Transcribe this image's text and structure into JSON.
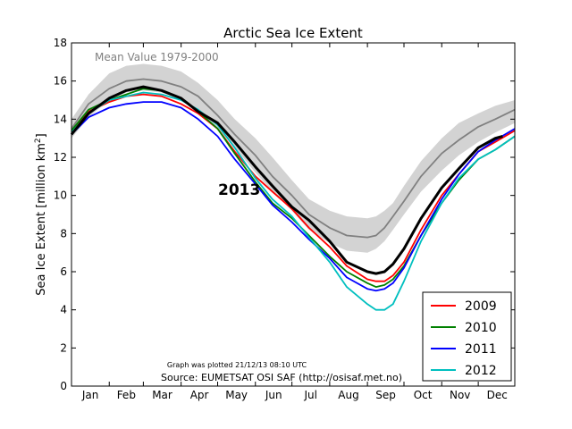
{
  "chart_data": {
    "type": "line",
    "title": "Arctic Sea Ice Extent",
    "ylabel": "Sea Ice Extent [million km",
    "ylabel_sup": "2",
    "ylabel_end": "]",
    "ylim": [
      0,
      18
    ],
    "xlim": [
      1,
      365
    ],
    "yticks": [
      0,
      2,
      4,
      6,
      8,
      10,
      12,
      14,
      16,
      18
    ],
    "month_labels": [
      "Jan",
      "Feb",
      "Mar",
      "Apr",
      "May",
      "Jun",
      "Jul",
      "Aug",
      "Sep",
      "Oct",
      "Nov",
      "Dec"
    ],
    "grid": false,
    "legend_placement": "lower-right",
    "mean_label": "Mean Value 1979-2000",
    "highlight_label": "2013",
    "plot_note": "Graph was plotted 21/12/13 08:10 UTC",
    "source": "Source: EUMETSAT OSI SAF (http://osisaf.met.no)",
    "mean_band": {
      "x": [
        1,
        15,
        32,
        46,
        60,
        75,
        91,
        105,
        121,
        135,
        152,
        166,
        182,
        196,
        213,
        227,
        244,
        251,
        258,
        265,
        274,
        288,
        305,
        319,
        335,
        349,
        365
      ],
      "upper": [
        14.0,
        15.3,
        16.4,
        16.8,
        16.9,
        16.8,
        16.5,
        15.9,
        15.0,
        14.0,
        13.0,
        12.0,
        10.8,
        9.8,
        9.2,
        8.9,
        8.8,
        8.9,
        9.2,
        9.6,
        10.5,
        11.8,
        13.0,
        13.8,
        14.3,
        14.7,
        15.0
      ],
      "lower": [
        13.0,
        14.1,
        15.0,
        15.4,
        15.5,
        15.4,
        15.0,
        14.5,
        13.5,
        12.5,
        11.2,
        10.2,
        9.2,
        8.2,
        7.5,
        7.1,
        7.0,
        7.2,
        7.6,
        8.2,
        9.0,
        10.2,
        11.3,
        12.1,
        12.8,
        13.3,
        13.8
      ]
    },
    "series": [
      {
        "name": "Mean Value 1979-2000",
        "color": "#808080",
        "x": [
          1,
          15,
          32,
          46,
          60,
          75,
          91,
          105,
          121,
          135,
          152,
          166,
          182,
          196,
          213,
          227,
          244,
          251,
          258,
          265,
          274,
          288,
          305,
          319,
          335,
          349,
          365
        ],
        "values": [
          13.5,
          14.8,
          15.6,
          16.0,
          16.1,
          16.0,
          15.7,
          15.2,
          14.2,
          13.2,
          12.1,
          11.0,
          10.0,
          9.0,
          8.3,
          7.9,
          7.8,
          7.9,
          8.3,
          8.9,
          9.7,
          11.0,
          12.2,
          12.9,
          13.6,
          14.0,
          14.5
        ]
      },
      {
        "name": "2009",
        "color": "#ff0000",
        "x": [
          1,
          15,
          32,
          46,
          60,
          75,
          91,
          105,
          121,
          135,
          152,
          166,
          182,
          196,
          213,
          227,
          244,
          251,
          258,
          265,
          274,
          288,
          305,
          319,
          335,
          349,
          365
        ],
        "values": [
          13.3,
          14.4,
          14.9,
          15.2,
          15.3,
          15.2,
          14.8,
          14.3,
          13.5,
          12.3,
          11.0,
          10.2,
          9.3,
          8.3,
          7.3,
          6.3,
          5.6,
          5.5,
          5.5,
          5.8,
          6.5,
          8.2,
          10.0,
          11.1,
          12.3,
          12.8,
          13.4
        ]
      },
      {
        "name": "2010",
        "color": "#008000",
        "x": [
          1,
          15,
          32,
          46,
          60,
          75,
          91,
          105,
          121,
          135,
          152,
          166,
          182,
          196,
          213,
          227,
          244,
          251,
          258,
          265,
          274,
          288,
          305,
          319,
          335,
          349,
          365
        ],
        "values": [
          13.4,
          14.5,
          15.0,
          15.3,
          15.6,
          15.5,
          15.1,
          14.4,
          13.5,
          12.2,
          10.7,
          9.6,
          8.8,
          7.9,
          6.8,
          6.0,
          5.4,
          5.2,
          5.3,
          5.6,
          6.3,
          7.9,
          9.6,
          10.8,
          11.9,
          12.4,
          13.1
        ]
      },
      {
        "name": "2011",
        "color": "#0000ff",
        "x": [
          1,
          15,
          32,
          46,
          60,
          75,
          91,
          105,
          121,
          135,
          152,
          166,
          182,
          196,
          213,
          227,
          244,
          251,
          258,
          265,
          274,
          288,
          305,
          319,
          335,
          349,
          365
        ],
        "values": [
          13.2,
          14.1,
          14.6,
          14.8,
          14.9,
          14.9,
          14.6,
          14.0,
          13.1,
          11.9,
          10.6,
          9.5,
          8.6,
          7.7,
          6.7,
          5.7,
          5.1,
          5.0,
          5.1,
          5.4,
          6.2,
          7.9,
          9.8,
          11.1,
          12.3,
          12.9,
          13.5
        ]
      },
      {
        "name": "2012",
        "color": "#00bfbf",
        "x": [
          1,
          15,
          32,
          46,
          60,
          75,
          91,
          105,
          121,
          135,
          152,
          166,
          182,
          196,
          213,
          227,
          244,
          251,
          258,
          265,
          274,
          288,
          305,
          319,
          335,
          349,
          365
        ],
        "values": [
          13.3,
          14.3,
          15.0,
          15.2,
          15.4,
          15.3,
          15.0,
          14.5,
          13.7,
          12.5,
          10.9,
          9.8,
          8.9,
          7.8,
          6.5,
          5.2,
          4.3,
          4.0,
          4.0,
          4.3,
          5.5,
          7.6,
          9.6,
          10.9,
          11.9,
          12.4,
          13.1
        ]
      },
      {
        "name": "2013",
        "color": "#000000",
        "x": [
          1,
          15,
          32,
          46,
          60,
          75,
          91,
          105,
          121,
          135,
          152,
          166,
          182,
          196,
          213,
          227,
          244,
          251,
          258,
          265,
          274,
          288,
          305,
          319,
          335,
          349,
          355
        ],
        "values": [
          13.2,
          14.3,
          15.1,
          15.5,
          15.7,
          15.5,
          15.1,
          14.4,
          13.8,
          12.8,
          11.5,
          10.5,
          9.4,
          8.7,
          7.6,
          6.5,
          6.0,
          5.9,
          6.0,
          6.4,
          7.2,
          8.8,
          10.4,
          11.4,
          12.5,
          13.0,
          13.1
        ]
      }
    ],
    "legend": [
      "2009",
      "2010",
      "2011",
      "2012"
    ]
  }
}
